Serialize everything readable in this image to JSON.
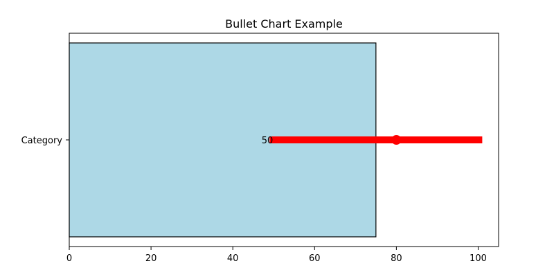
{
  "chart_data": {
    "type": "bar",
    "orientation": "horizontal",
    "title": "Bullet Chart Example",
    "xlabel": "",
    "ylabel": "",
    "categories": [
      "Category"
    ],
    "xlim": [
      0,
      105
    ],
    "xticks": [
      0,
      20,
      40,
      60,
      80,
      100
    ],
    "grid": false,
    "legend": "none",
    "range_bar": {
      "start": 0,
      "end": 75,
      "color": "#add8e6",
      "edge_color": "#000000"
    },
    "target_line": {
      "start": 49,
      "end": 101,
      "color": "#ff0000"
    },
    "marker": {
      "value": 80,
      "color": "#ff0000"
    },
    "data_label": {
      "text": "50",
      "value": 50
    }
  }
}
